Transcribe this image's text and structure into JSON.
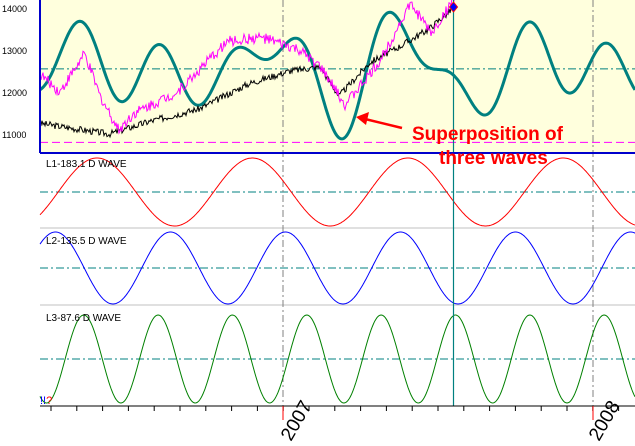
{
  "chart_data": [
    {
      "type": "line",
      "panel": "price",
      "yticks": [
        "14000",
        "13000",
        "12000",
        "11000"
      ],
      "ytick_values": [
        14000,
        13000,
        12000,
        11000
      ],
      "ylim": [
        10550,
        14180
      ],
      "xlim": [
        2006.22,
        2007.92
      ],
      "x_tick_labels": [
        "2007",
        "2008"
      ],
      "x_tick_values": [
        2007,
        2008
      ],
      "reference_lines": {
        "teal_dashdot": 12550,
        "magenta_dashed": 10800
      },
      "cursor_x": 2007.55,
      "series": [
        {
          "color": "#000000",
          "x": [
            2006.22,
            2006.44,
            2006.57,
            2006.73,
            2006.89,
            2007.02,
            2007.12,
            2007.18,
            2007.28,
            2007.38,
            2007.47,
            2007.55
          ],
          "values": [
            11250,
            11000,
            11300,
            11600,
            12200,
            12500,
            12600,
            11900,
            12700,
            13100,
            13500,
            14000
          ]
        },
        {
          "color": "#ff00ff",
          "x": [
            2006.22,
            2006.28,
            2006.36,
            2006.41,
            2006.47,
            2006.52,
            2006.66,
            2006.82,
            2006.93,
            2007.05,
            2007.12,
            2007.2,
            2007.31,
            2007.41,
            2007.48,
            2007.55
          ],
          "values": [
            12400,
            12000,
            12900,
            11900,
            11100,
            11500,
            12000,
            13200,
            13300,
            13000,
            12600,
            11700,
            12700,
            14100,
            13400,
            14200
          ]
        },
        {
          "color": "#008080",
          "composite_of_waves": true,
          "center": 12550,
          "amplitude_per_wave": 580
        }
      ],
      "annotation": {
        "line1": "Superposition of",
        "line2": "three waves",
        "color": "#ff0000"
      }
    },
    {
      "type": "line",
      "panel": "wave",
      "label": "L1-183.1 D WAVE",
      "period_days": 183.1,
      "peak_at": 2006.4,
      "color": "#ff0000"
    },
    {
      "type": "line",
      "panel": "wave",
      "label": "L2-135.5 D WAVE",
      "period_days": 135.5,
      "peak_at": 2006.637,
      "color": "#0000ff"
    },
    {
      "type": "line",
      "panel": "wave",
      "label": "L3-87.6 D WAVE",
      "period_days": 87.6,
      "peak_at": 2006.597,
      "color": "#008000"
    }
  ],
  "status": {
    "mark1": "!!",
    "mark2": "?"
  },
  "colors": {
    "panel_bg": "#ffffdd",
    "teal": "#008080",
    "axis": "#0000cc"
  }
}
